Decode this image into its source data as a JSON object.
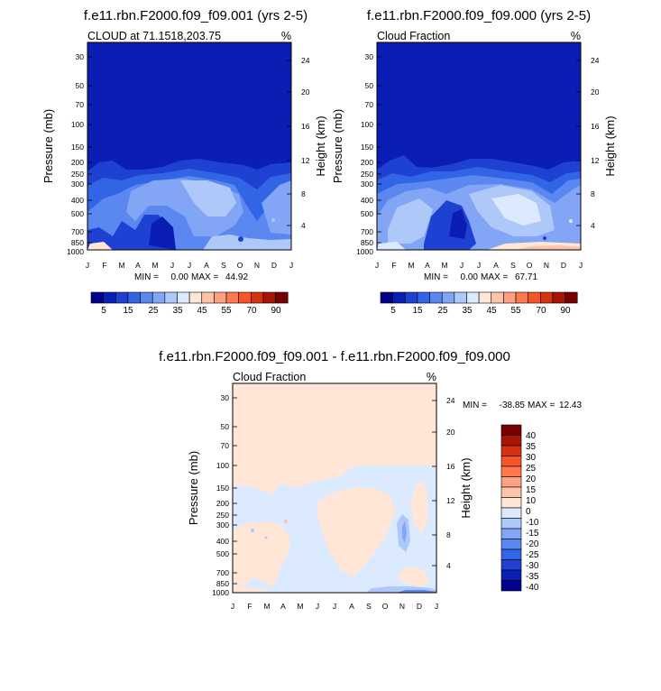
{
  "chart_data": [
    {
      "type": "heatmap",
      "title": "f.e11.rbn.F2000.f09_f09.001 (yrs 2-5)",
      "left_label": "CLOUD at 71.1518,203.75",
      "right_label": "%",
      "ylabel": "Pressure (mb)",
      "ylabel_right": "Height (km)",
      "x_ticks": [
        "J",
        "F",
        "M",
        "A",
        "M",
        "J",
        "J",
        "A",
        "S",
        "O",
        "N",
        "D",
        "J"
      ],
      "pressure_ticks": [
        30,
        50,
        70,
        100,
        150,
        200,
        250,
        300,
        400,
        500,
        700,
        850,
        1000
      ],
      "height_ticks": [
        24,
        20,
        16,
        12,
        8,
        4
      ],
      "ylim": [
        1000,
        25
      ],
      "min_label": "MIN =",
      "min_value": "0.00",
      "max_label": "MAX =",
      "max_value": "44.92"
    },
    {
      "type": "heatmap",
      "title": "f.e11.rbn.F2000.f09_f09.000 (yrs 2-5)",
      "left_label": "Cloud Fraction",
      "right_label": "%",
      "ylabel": "Pressure (mb)",
      "ylabel_right": "Height (km)",
      "x_ticks": [
        "J",
        "F",
        "M",
        "A",
        "M",
        "J",
        "J",
        "A",
        "S",
        "O",
        "N",
        "D",
        "J"
      ],
      "pressure_ticks": [
        30,
        50,
        70,
        100,
        150,
        200,
        250,
        300,
        400,
        500,
        700,
        850,
        1000
      ],
      "height_ticks": [
        24,
        20,
        16,
        12,
        8,
        4
      ],
      "ylim": [
        1000,
        25
      ],
      "min_label": "MIN =",
      "min_value": "0.00",
      "max_label": "MAX =",
      "max_value": "67.71"
    },
    {
      "type": "heatmap",
      "title": "f.e11.rbn.F2000.f09_f09.001 - f.e11.rbn.F2000.f09_f09.000",
      "left_label": "Cloud Fraction",
      "right_label": "%",
      "ylabel": "Pressure (mb)",
      "ylabel_right": "Height (km)",
      "x_ticks": [
        "J",
        "F",
        "M",
        "A",
        "M",
        "J",
        "J",
        "A",
        "S",
        "O",
        "N",
        "D",
        "J"
      ],
      "pressure_ticks": [
        30,
        50,
        70,
        100,
        150,
        200,
        250,
        300,
        400,
        500,
        700,
        850,
        1000
      ],
      "height_ticks": [
        24,
        20,
        16,
        12,
        8,
        4
      ],
      "ylim": [
        1000,
        25
      ],
      "min_label": "MIN =",
      "min_value": "-38.85",
      "max_label": "MAX =",
      "max_value": "12.43"
    }
  ],
  "colorbar_abs": {
    "labels": [
      "5",
      "15",
      "25",
      "35",
      "45",
      "55",
      "70",
      "90"
    ],
    "colors": [
      "#00008c",
      "#0a1eb4",
      "#1e41d2",
      "#3264e6",
      "#5a87f0",
      "#82a5f5",
      "#afc8fa",
      "#dceaff",
      "#ffe6d7",
      "#ffc3aa",
      "#ffa082",
      "#ff7850",
      "#f55528",
      "#d7320f",
      "#aa1405",
      "#780000"
    ]
  },
  "colorbar_diff": {
    "labels": [
      "40",
      "35",
      "30",
      "25",
      "20",
      "15",
      "10",
      "0",
      "-10",
      "-15",
      "-20",
      "-25",
      "-30",
      "-35",
      "-40"
    ],
    "colors": [
      "#780000",
      "#aa1405",
      "#d7320f",
      "#f55528",
      "#ff7850",
      "#ffa082",
      "#ffc3aa",
      "#ffe6d7",
      "#dceaff",
      "#afc8fa",
      "#82a5f5",
      "#5a87f0",
      "#3264e6",
      "#1e41d2",
      "#0a1eb4",
      "#00008c"
    ]
  }
}
